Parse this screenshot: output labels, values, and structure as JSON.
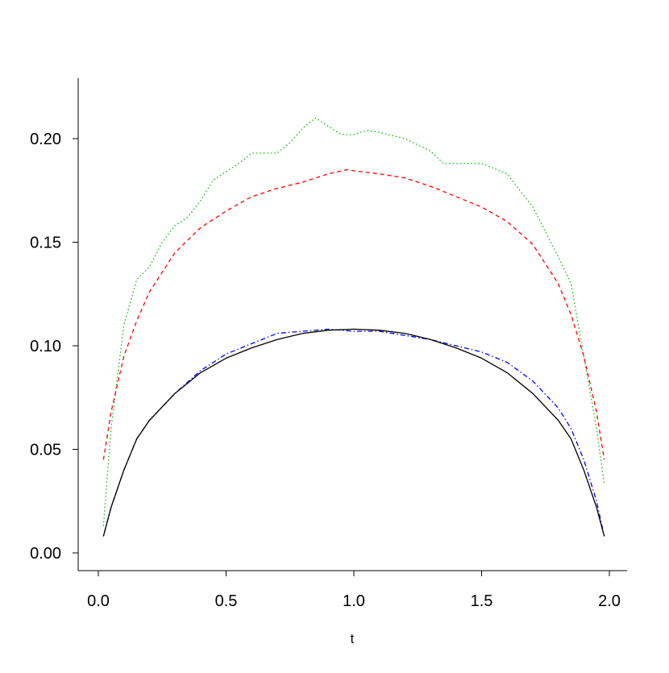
{
  "chart_data": {
    "type": "line",
    "title": "",
    "xlabel": "t",
    "ylabel": "",
    "xlim": [
      -0.08,
      2.07
    ],
    "ylim": [
      -0.0086,
      0.229
    ],
    "xticks": [
      "0.0",
      "0.5",
      "1.0",
      "1.5",
      "2.0"
    ],
    "yticks": [
      "0.00",
      "0.05",
      "0.10",
      "0.15",
      "0.20"
    ],
    "grid": false,
    "legend": "none",
    "series": [
      {
        "color": "#00c000",
        "style": "dotted",
        "x": [
          0.02,
          0.05,
          0.1,
          0.15,
          0.2,
          0.25,
          0.3,
          0.35,
          0.4,
          0.45,
          0.5,
          0.55,
          0.6,
          0.7,
          0.75,
          0.8,
          0.85,
          0.9,
          0.95,
          1.0,
          1.05,
          1.1,
          1.2,
          1.3,
          1.35,
          1.4,
          1.5,
          1.6,
          1.65,
          1.7,
          1.75,
          1.8,
          1.85,
          1.9,
          1.95,
          1.98
        ],
        "y": [
          0.013,
          0.06,
          0.11,
          0.132,
          0.138,
          0.15,
          0.158,
          0.162,
          0.17,
          0.18,
          0.184,
          0.188,
          0.193,
          0.193,
          0.198,
          0.205,
          0.21,
          0.206,
          0.202,
          0.202,
          0.204,
          0.203,
          0.2,
          0.194,
          0.188,
          0.188,
          0.188,
          0.183,
          0.175,
          0.167,
          0.155,
          0.143,
          0.13,
          0.095,
          0.06,
          0.033
        ]
      },
      {
        "color": "#ff0000",
        "style": "dashed",
        "x": [
          0.02,
          0.05,
          0.1,
          0.15,
          0.2,
          0.3,
          0.4,
          0.5,
          0.6,
          0.7,
          0.8,
          0.9,
          0.97,
          1.1,
          1.2,
          1.3,
          1.4,
          1.5,
          1.6,
          1.7,
          1.8,
          1.85,
          1.9,
          1.95,
          1.98
        ],
        "y": [
          0.045,
          0.068,
          0.095,
          0.112,
          0.126,
          0.145,
          0.157,
          0.165,
          0.172,
          0.176,
          0.179,
          0.183,
          0.185,
          0.183,
          0.181,
          0.177,
          0.172,
          0.167,
          0.16,
          0.149,
          0.13,
          0.115,
          0.095,
          0.068,
          0.045
        ]
      },
      {
        "color": "#0000ff",
        "style": "dotdash",
        "x": [
          0.02,
          0.05,
          0.1,
          0.15,
          0.2,
          0.3,
          0.4,
          0.5,
          0.6,
          0.7,
          0.8,
          0.9,
          1.0,
          1.1,
          1.2,
          1.3,
          1.4,
          1.5,
          1.6,
          1.7,
          1.8,
          1.85,
          1.9,
          1.95,
          1.98
        ],
        "y": [
          0.008,
          0.022,
          0.04,
          0.055,
          0.064,
          0.077,
          0.088,
          0.096,
          0.101,
          0.106,
          0.107,
          0.108,
          0.107,
          0.107,
          0.105,
          0.103,
          0.1,
          0.097,
          0.092,
          0.083,
          0.07,
          0.06,
          0.045,
          0.025,
          0.008
        ]
      },
      {
        "color": "#000000",
        "style": "solid",
        "x": [
          0.02,
          0.05,
          0.1,
          0.15,
          0.2,
          0.3,
          0.4,
          0.5,
          0.6,
          0.7,
          0.8,
          0.9,
          1.0,
          1.1,
          1.2,
          1.3,
          1.4,
          1.5,
          1.6,
          1.7,
          1.8,
          1.85,
          1.9,
          1.95,
          1.98
        ],
        "y": [
          0.008,
          0.022,
          0.04,
          0.055,
          0.064,
          0.077,
          0.087,
          0.094,
          0.099,
          0.103,
          0.106,
          0.1075,
          0.108,
          0.1075,
          0.106,
          0.103,
          0.099,
          0.094,
          0.087,
          0.077,
          0.064,
          0.055,
          0.04,
          0.022,
          0.008
        ]
      }
    ]
  }
}
